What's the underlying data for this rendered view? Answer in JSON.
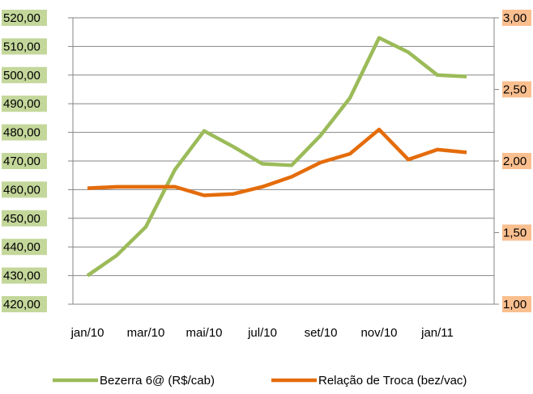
{
  "chart_data": {
    "type": "line",
    "categories": [
      "jan/10",
      null,
      "mar/10",
      null,
      "mai/10",
      null,
      "jul/10",
      null,
      "set/10",
      null,
      "nov/10",
      null,
      "jan/11",
      null
    ],
    "series": [
      {
        "name": "Bezerra 6@ (R$/cab)",
        "color": "#9bbb59",
        "axis": "y",
        "values": [
          430,
          437,
          447,
          467,
          480.5,
          475,
          469,
          468.5,
          479,
          492,
          513,
          508,
          500,
          499.5
        ]
      },
      {
        "name": "Relação de Troca (bez/vac)",
        "color": "#e46c0a",
        "axis": "y2",
        "values": [
          1.81,
          1.82,
          1.82,
          1.82,
          1.76,
          1.77,
          1.82,
          1.89,
          1.99,
          2.05,
          2.22,
          2.01,
          2.08,
          2.06
        ]
      }
    ],
    "ylim": [
      420,
      520
    ],
    "yticks": [
      {
        "value": 420,
        "label": "420,00"
      },
      {
        "value": 430,
        "label": "430,00"
      },
      {
        "value": 440,
        "label": "440,00"
      },
      {
        "value": 450,
        "label": "450,00"
      },
      {
        "value": 460,
        "label": "460,00"
      },
      {
        "value": 470,
        "label": "470,00"
      },
      {
        "value": 480,
        "label": "480,00"
      },
      {
        "value": 490,
        "label": "490,00"
      },
      {
        "value": 500,
        "label": "500,00"
      },
      {
        "value": 510,
        "label": "510,00"
      },
      {
        "value": 520,
        "label": "520,00"
      }
    ],
    "y2lim": [
      1,
      3
    ],
    "y2ticks": [
      {
        "value": 1,
        "label": "1,00"
      },
      {
        "value": 1.5,
        "label": "1,50"
      },
      {
        "value": 2,
        "label": "2,00"
      },
      {
        "value": 2.5,
        "label": "2,50"
      },
      {
        "value": 3,
        "label": "3,00"
      }
    ],
    "grid": true,
    "legend": "bottom"
  }
}
